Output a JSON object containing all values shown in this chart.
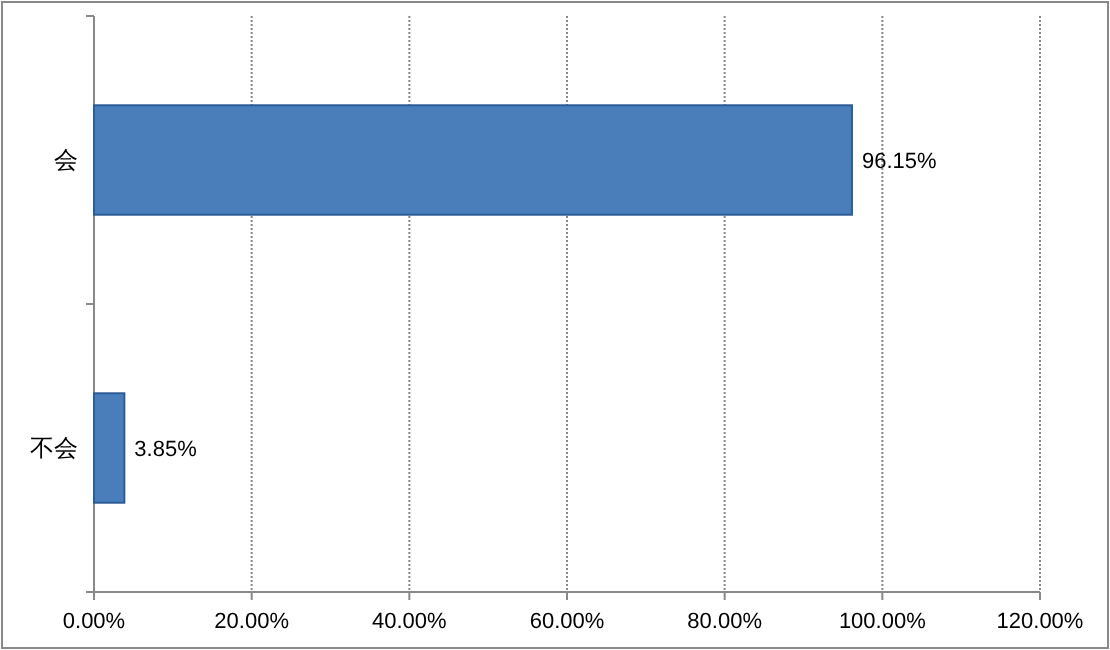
{
  "chart_data": {
    "type": "bar",
    "orientation": "horizontal",
    "categories": [
      "会",
      "不会"
    ],
    "values": [
      96.15,
      3.85
    ],
    "value_labels": [
      "96.15%",
      "3.85%"
    ],
    "color": "#4a7ebb",
    "xlim": [
      0,
      120
    ],
    "xticks": [
      {
        "value": 0,
        "label": "0.00%"
      },
      {
        "value": 20,
        "label": "20.00%"
      },
      {
        "value": 40,
        "label": "40.00%"
      },
      {
        "value": 60,
        "label": "60.00%"
      },
      {
        "value": 80,
        "label": "80.00%"
      },
      {
        "value": 100,
        "label": "100.00%"
      },
      {
        "value": 120,
        "label": "120.00%"
      }
    ],
    "grid": "x"
  }
}
